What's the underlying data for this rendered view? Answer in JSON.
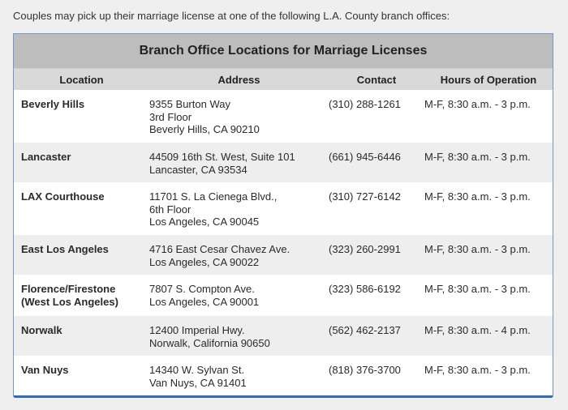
{
  "intro": "Couples may pick up their marriage license at one of the following L.A. County branch offices:",
  "table": {
    "title": "Branch Office Locations for Marriage Licenses",
    "headers": [
      "Location",
      "Address",
      "Contact",
      "Hours of Operation"
    ],
    "rows": [
      {
        "location": [
          "Beverly Hills"
        ],
        "address": [
          "9355 Burton Way",
          "3rd Floor",
          "Beverly Hills, CA 90210"
        ],
        "contact": "(310) 288-1261",
        "hours": "M-F, 8:30 a.m. - 3 p.m."
      },
      {
        "location": [
          "Lancaster"
        ],
        "address": [
          "44509 16th St. West, Suite 101",
          "Lancaster, CA 93534"
        ],
        "contact": "(661) 945-6446",
        "hours": "M-F, 8:30 a.m. - 3 p.m."
      },
      {
        "location": [
          "LAX Courthouse"
        ],
        "address": [
          "11701 S. La Cienega Blvd.,",
          "6th Floor",
          "Los Angeles, CA 90045"
        ],
        "contact": "(310) 727-6142",
        "hours": "M-F, 8:30 a.m. - 3 p.m."
      },
      {
        "location": [
          "East Los Angeles"
        ],
        "address": [
          "4716 East Cesar Chavez Ave.",
          "Los Angeles, CA 90022"
        ],
        "contact": "(323) 260-2991",
        "hours": "M-F, 8:30 a.m. - 3 p.m."
      },
      {
        "location": [
          "Florence/Firestone",
          "(West Los Angeles)"
        ],
        "address": [
          "7807 S. Compton Ave.",
          "Los Angeles, CA 90001"
        ],
        "contact": "(323) 586-6192",
        "hours": "M-F, 8:30 a.m. - 3 p.m."
      },
      {
        "location": [
          "Norwalk"
        ],
        "address": [
          "12400 Imperial Hwy.",
          "Norwalk, California 90650"
        ],
        "contact": "(562) 462-2137",
        "hours": "M-F, 8:30 a.m. - 4 p.m."
      },
      {
        "location": [
          "Van Nuys"
        ],
        "address": [
          "14340 W. Sylvan St.",
          "Van Nuys, CA 91401"
        ],
        "contact": "(818) 376-3700",
        "hours": "M-F, 8:30 a.m. - 3 p.m."
      }
    ]
  },
  "colors": {
    "accent": "#2e6db4",
    "title_bg": "#bdbdbd",
    "header_bg": "#d9d9d9",
    "alt_row": "#eeeeee"
  }
}
